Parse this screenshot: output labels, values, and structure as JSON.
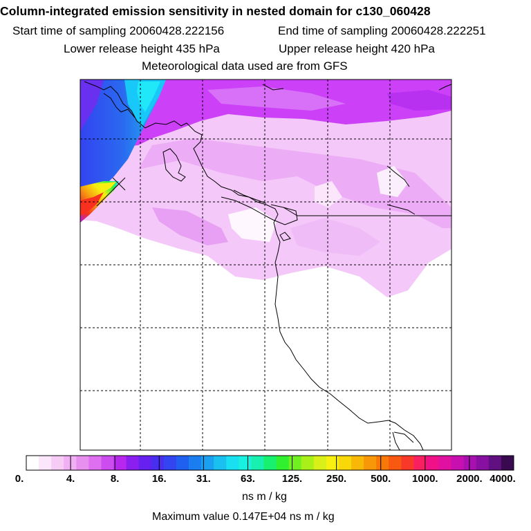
{
  "header": {
    "title": "Column-integrated emission sensitivity in nested domain for c130_060428",
    "start_time": "Start time of sampling 20060428.222156",
    "end_time": "End time of sampling 20060428.222251",
    "lower_release": "Lower release height  435 hPa",
    "upper_release": "Upper release height  420 hPa",
    "met_data": "Meteorological data used are from GFS"
  },
  "colorbar": {
    "labels": [
      "0.",
      "4.",
      "8.",
      "16.",
      "31.",
      "63.",
      "125.",
      "250.",
      "500.",
      "1000.",
      "2000.",
      "4000."
    ],
    "colors": [
      "#ffffff",
      "#fbe6fb",
      "#f6ccf6",
      "#f0b0f3",
      "#e890f0",
      "#dd6ff0",
      "#cd4cf0",
      "#b827ee",
      "#8a1ff0",
      "#6620f0",
      "#4a2ef0",
      "#3245f0",
      "#2060f0",
      "#1b7ef0",
      "#1aa0f0",
      "#19c0f0",
      "#18e0f0",
      "#18f0e0",
      "#18f0b0",
      "#18f070",
      "#30f030",
      "#70f020",
      "#a8f018",
      "#d8f018",
      "#f8f010",
      "#f8d808",
      "#f8b808",
      "#f89808",
      "#f87808",
      "#f85810",
      "#f83828",
      "#f82060",
      "#f01088",
      "#e010a0",
      "#c810b0",
      "#a810b0",
      "#8810a0",
      "#601080",
      "#3a0a50"
    ]
  },
  "units": "ns m / kg",
  "max_value": "Maximum value  0.147E+04 ns m / kg",
  "map": {
    "release_marker": "release-point",
    "colors": {
      "magenta": "#cc33ff",
      "light_pink": "#f0b8f8",
      "blue": "#3344f0",
      "cyan": "#18e0f8",
      "red": "#f03020",
      "yellow": "#f8e010"
    }
  }
}
